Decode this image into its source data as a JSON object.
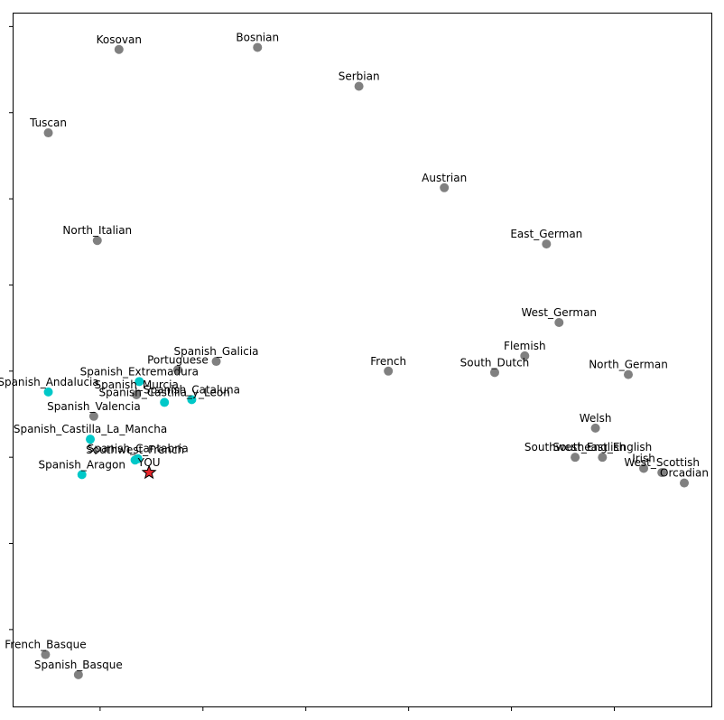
{
  "chart_data": {
    "type": "scatter",
    "title": "",
    "xlabel": "",
    "ylabel": "",
    "xlim": [
      0.0,
      1.0
    ],
    "ylim": [
      0.0,
      1.0
    ],
    "grid": false,
    "ticks_labeled": false,
    "colors": {
      "other": "#808080",
      "spanish": "#00c8c8",
      "you_fill": "#e8262b",
      "you_edge": "#000000"
    },
    "points": [
      {
        "label": "Kosovan",
        "x": 0.152,
        "y": 0.947,
        "group": "other"
      },
      {
        "label": "Bosnian",
        "x": 0.35,
        "y": 0.95,
        "group": "other"
      },
      {
        "label": "Serbian",
        "x": 0.495,
        "y": 0.894,
        "group": "other"
      },
      {
        "label": "Tuscan",
        "x": 0.051,
        "y": 0.827,
        "group": "other"
      },
      {
        "label": "Austrian",
        "x": 0.617,
        "y": 0.748,
        "group": "other"
      },
      {
        "label": "North_Italian",
        "x": 0.121,
        "y": 0.672,
        "group": "other"
      },
      {
        "label": "East_German",
        "x": 0.763,
        "y": 0.667,
        "group": "other"
      },
      {
        "label": "West_German",
        "x": 0.781,
        "y": 0.554,
        "group": "other"
      },
      {
        "label": "Flemish",
        "x": 0.732,
        "y": 0.506,
        "group": "other"
      },
      {
        "label": "Spanish_Galicia",
        "x": 0.291,
        "y": 0.498,
        "group": "other"
      },
      {
        "label": "French",
        "x": 0.537,
        "y": 0.484,
        "group": "other"
      },
      {
        "label": "Portuguese",
        "x": 0.236,
        "y": 0.486,
        "group": "other"
      },
      {
        "label": "South_Dutch",
        "x": 0.689,
        "y": 0.482,
        "group": "other"
      },
      {
        "label": "North_German",
        "x": 0.88,
        "y": 0.479,
        "group": "other"
      },
      {
        "label": "Spanish_Extremadura",
        "x": 0.181,
        "y": 0.469,
        "group": "spanish"
      },
      {
        "label": "Spanish_Andalucia",
        "x": 0.051,
        "y": 0.454,
        "group": "spanish"
      },
      {
        "label": "Spanish_Murcia",
        "x": 0.177,
        "y": 0.45,
        "group": "other"
      },
      {
        "label": "Spanish_Cataluna",
        "x": 0.256,
        "y": 0.443,
        "group": "spanish"
      },
      {
        "label": "Spanish_Castilla_y_Leon",
        "x": 0.217,
        "y": 0.439,
        "group": "spanish"
      },
      {
        "label": "Spanish_Valencia",
        "x": 0.116,
        "y": 0.419,
        "group": "other"
      },
      {
        "label": "Welsh",
        "x": 0.833,
        "y": 0.402,
        "group": "other"
      },
      {
        "label": "Spanish_Castilla_La_Mancha",
        "x": 0.111,
        "y": 0.386,
        "group": "spanish"
      },
      {
        "label": "Southwest_English",
        "x": 0.804,
        "y": 0.36,
        "group": "other"
      },
      {
        "label": "Southeast_English",
        "x": 0.843,
        "y": 0.36,
        "group": "other"
      },
      {
        "label": "Spanish_Cantabria",
        "x": 0.179,
        "y": 0.358,
        "group": "spanish"
      },
      {
        "label": "Southwest_French",
        "x": 0.175,
        "y": 0.356,
        "group": "spanish"
      },
      {
        "label": "Irish",
        "x": 0.902,
        "y": 0.344,
        "group": "other"
      },
      {
        "label": "West_Scottish",
        "x": 0.928,
        "y": 0.338,
        "group": "other"
      },
      {
        "label": "Orcadian",
        "x": 0.96,
        "y": 0.323,
        "group": "other"
      },
      {
        "label": "YOU",
        "x": 0.195,
        "y": 0.338,
        "group": "you"
      },
      {
        "label": "Spanish_Aragon",
        "x": 0.099,
        "y": 0.335,
        "group": "spanish"
      },
      {
        "label": "French_Basque",
        "x": 0.047,
        "y": 0.076,
        "group": "other"
      },
      {
        "label": "Spanish_Basque",
        "x": 0.094,
        "y": 0.047,
        "group": "other"
      }
    ]
  }
}
